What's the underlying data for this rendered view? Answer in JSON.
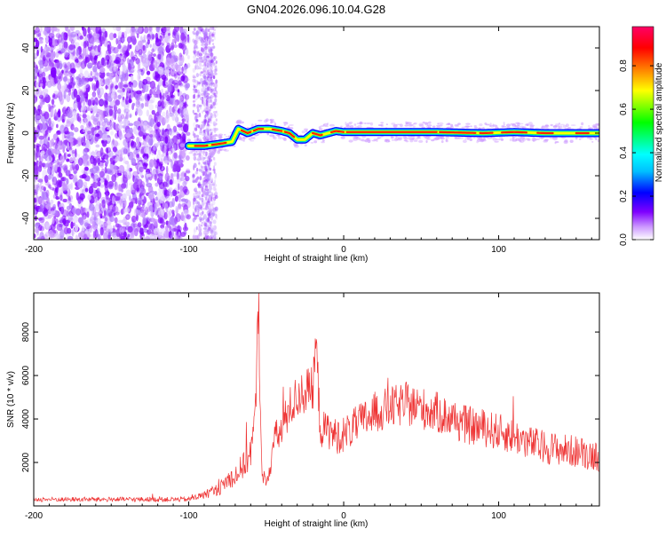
{
  "title": "GN04.2026.096.10.04.G28",
  "chart_data": [
    {
      "type": "heatmap",
      "title": "GN04.2026.096.10.04.G28",
      "xlabel": "Height of straight line (km)",
      "ylabel": "Frequency (Hz)",
      "xlim": [
        -200,
        165
      ],
      "ylim": [
        -50,
        50
      ],
      "xticks": [
        -200,
        -100,
        0,
        100
      ],
      "yticks": [
        -40,
        -20,
        0,
        20,
        40
      ],
      "colorbar": {
        "label": "Normalized spectral amplitude",
        "range": [
          0,
          0.98
        ],
        "ticks": [
          0.0,
          0.2,
          0.4,
          0.6,
          0.8
        ],
        "tick_labels": [
          "0.0",
          "0.2",
          "0.4",
          "0.6",
          "0.8"
        ],
        "colormap": [
          "#ffffff",
          "#cc99ff",
          "#7f00ff",
          "#0000ff",
          "#00bfff",
          "#00ffff",
          "#00ff00",
          "#ffff00",
          "#ff7f00",
          "#ff0000",
          "#ff0066"
        ]
      },
      "signal_track": {
        "x": [
          -100,
          -90,
          -80,
          -72,
          -68,
          -62,
          -55,
          -48,
          -40,
          -35,
          -30,
          -25,
          -20,
          -15,
          -10,
          -5,
          0,
          30,
          60,
          90,
          110,
          130,
          165
        ],
        "y": [
          -6,
          -6,
          -5,
          -4,
          2,
          0,
          2,
          2,
          1,
          0,
          -3,
          -3,
          0,
          -1,
          0,
          1,
          0.5,
          0.5,
          0.5,
          0,
          0.5,
          0,
          0
        ]
      },
      "noise_region": {
        "x_range": [
          -200,
          -100
        ],
        "note": "scattered noise"
      }
    },
    {
      "type": "line",
      "xlabel": "Height of straight line (km)",
      "ylabel": "SNR (10 * v/v)",
      "xlim": [
        -200,
        165
      ],
      "ylim": [
        0,
        9800
      ],
      "xticks": [
        -200,
        -100,
        0,
        100
      ],
      "yticks": [
        2000,
        4000,
        6000,
        8000
      ],
      "color": "#ee3333",
      "envelope_x": [
        -200,
        -100,
        -90,
        -80,
        -75,
        -70,
        -65,
        -60,
        -57,
        -55,
        -53,
        -50,
        -45,
        -40,
        -35,
        -30,
        -25,
        -20,
        -18,
        -15,
        -10,
        -5,
        0,
        10,
        20,
        30,
        40,
        50,
        60,
        70,
        80,
        90,
        100,
        110,
        120,
        130,
        140,
        150,
        165
      ],
      "envelope_y": [
        300,
        300,
        500,
        800,
        1200,
        1400,
        1800,
        2500,
        4000,
        9500,
        2000,
        800,
        3000,
        3500,
        4500,
        5000,
        5300,
        5300,
        7500,
        3500,
        3500,
        3200,
        3300,
        3800,
        4300,
        4500,
        4700,
        4500,
        4300,
        4000,
        3700,
        3600,
        3400,
        3200,
        2900,
        2700,
        2600,
        2500,
        2300
      ],
      "noise_amplitude": 450
    }
  ]
}
